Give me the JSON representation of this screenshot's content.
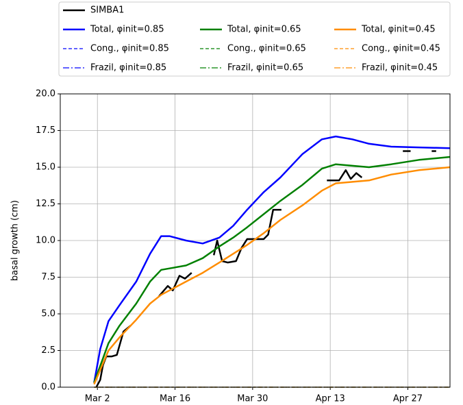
{
  "chart_data": {
    "type": "line",
    "ylabel": "basal growth (cm)",
    "xlim": [
      -6.7,
      63.6
    ],
    "xticks": [
      {
        "value": 0,
        "label": "Mar 2"
      },
      {
        "value": 14,
        "label": "Mar 16"
      },
      {
        "value": 28,
        "label": "Mar 30"
      },
      {
        "value": 42,
        "label": "Apr 13"
      },
      {
        "value": 56,
        "label": "Apr 27"
      }
    ],
    "ylim": [
      0,
      20
    ],
    "yticks": [
      {
        "value": 0,
        "label": "0.0"
      },
      2.5,
      {
        "value": 5,
        "label": "5.0"
      },
      7.5,
      {
        "value": 10,
        "label": "10.0"
      },
      12.5,
      {
        "value": 15,
        "label": "15.0"
      },
      17.5,
      {
        "value": 20,
        "label": "20.0"
      }
    ],
    "grid": true,
    "legend": "top",
    "series": [
      {
        "name": "SIMBA1",
        "color": "#000000",
        "linestyle": "solid",
        "x": [
          -0.2,
          0.5,
          1,
          1.6,
          2.6,
          3.5,
          4.7,
          6,
          7,
          11.1,
          12.7,
          13.6,
          14.8,
          15.8,
          17,
          19,
          21,
          21.6,
          22.5,
          23.5,
          25,
          26,
          27,
          30,
          30.8,
          31.7,
          33.2,
          37,
          41.4,
          43.6,
          44.8,
          45.7,
          46.7,
          47.7,
          50,
          55.1,
          56.5,
          60,
          60.3,
          61.1
        ],
        "values": [
          0.0,
          0.5,
          1.5,
          2.1,
          2.1,
          2.2,
          3.8,
          4.2,
          null,
          6.2,
          6.9,
          6.6,
          7.6,
          7.4,
          7.8,
          null,
          9.0,
          10.0,
          8.6,
          8.5,
          8.6,
          9.5,
          10.1,
          10.1,
          10.4,
          12.1,
          12.1,
          null,
          14.1,
          14.1,
          14.8,
          14.2,
          14.6,
          14.3,
          null,
          16.1,
          16.1,
          null,
          16.1,
          16.1
        ]
      },
      {
        "name": "Total, φinit=0.85",
        "color": "#0000ff",
        "linestyle": "solid",
        "x": [
          -0.6,
          0.5,
          2,
          4,
          7,
          9.5,
          11.5,
          13,
          16,
          19,
          22,
          24.5,
          27,
          30,
          33,
          37,
          40.5,
          43,
          46,
          49,
          53,
          58,
          63.6
        ],
        "values": [
          0.3,
          2.6,
          4.5,
          5.6,
          7.2,
          9.1,
          10.3,
          10.3,
          10.0,
          9.8,
          10.2,
          11.0,
          12.1,
          13.3,
          14.3,
          15.9,
          16.9,
          17.1,
          16.9,
          16.6,
          16.4,
          16.35,
          16.3
        ]
      },
      {
        "name": "Cong., φinit=0.85",
        "color": "#0000ff",
        "linestyle": "dashed",
        "x": [
          -0.6,
          63.6
        ],
        "values": [
          0,
          0
        ]
      },
      {
        "name": "Frazil, φinit=0.85",
        "color": "#0000ff",
        "linestyle": "dashdot",
        "x": [
          -0.6,
          63.6
        ],
        "values": [
          0,
          0
        ]
      },
      {
        "name": "Total, φinit=0.65",
        "color": "#008000",
        "linestyle": "solid",
        "x": [
          -0.6,
          2,
          4,
          7,
          9.5,
          11.5,
          13,
          16,
          19,
          22,
          24.5,
          27,
          30,
          33,
          37,
          40.5,
          43,
          46,
          49,
          53,
          58,
          63.6
        ],
        "values": [
          0.3,
          3.0,
          4.2,
          5.7,
          7.2,
          8.0,
          8.1,
          8.3,
          8.8,
          9.6,
          10.2,
          10.9,
          11.8,
          12.7,
          13.8,
          14.9,
          15.2,
          15.1,
          15.0,
          15.2,
          15.5,
          15.7
        ]
      },
      {
        "name": "Cong., φinit=0.65",
        "color": "#008000",
        "linestyle": "dashed",
        "x": [
          -0.6,
          63.6
        ],
        "values": [
          0,
          0
        ]
      },
      {
        "name": "Frazil, φinit=0.65",
        "color": "#008000",
        "linestyle": "dashdot",
        "x": [
          -0.6,
          63.6
        ],
        "values": [
          0,
          0
        ]
      },
      {
        "name": "Total, φinit=0.45",
        "color": "#ff8c00",
        "linestyle": "solid",
        "x": [
          -0.6,
          2,
          4,
          7,
          9.5,
          11.5,
          13,
          16,
          19,
          22,
          24.5,
          27,
          30,
          33,
          37,
          40.5,
          43,
          46,
          49,
          53,
          58,
          63.6
        ],
        "values": [
          0.2,
          2.5,
          3.4,
          4.6,
          5.7,
          6.3,
          6.6,
          7.2,
          7.8,
          8.5,
          9.1,
          9.7,
          10.5,
          11.4,
          12.4,
          13.4,
          13.9,
          14.0,
          14.1,
          14.5,
          14.8,
          15.0
        ]
      },
      {
        "name": "Cong., φinit=0.45",
        "color": "#ff8c00",
        "linestyle": "dashed",
        "x": [
          -0.6,
          63.6
        ],
        "values": [
          0,
          0
        ]
      },
      {
        "name": "Frazil, φinit=0.45",
        "color": "#ff8c00",
        "linestyle": "dashdot",
        "x": [
          -0.6,
          63.6
        ],
        "values": [
          0,
          0
        ]
      }
    ]
  }
}
